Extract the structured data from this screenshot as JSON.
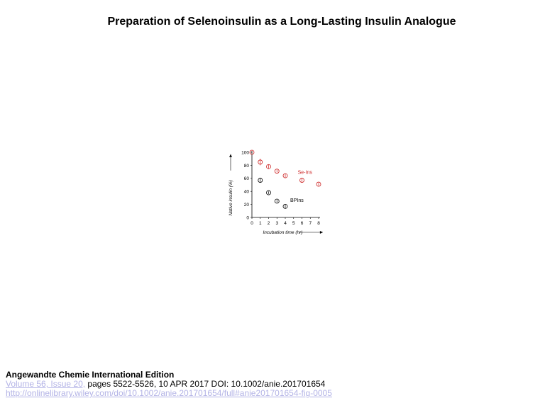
{
  "page": {
    "title": "Preparation of Selenoinsulin as a Long‐Lasting Insulin Analogue"
  },
  "chart_data": {
    "type": "scatter",
    "xlabel": "Incubation time (hr)",
    "ylabel": "Native insulin (%)",
    "xlim": [
      0,
      8
    ],
    "ylim": [
      0,
      100
    ],
    "x_ticks": [
      "0",
      "1",
      "2",
      "3",
      "4",
      "5",
      "6",
      "7",
      "8"
    ],
    "y_ticks": [
      "0",
      "20",
      "40",
      "60",
      "80",
      "100"
    ],
    "grid": false,
    "series": [
      {
        "name": "Se-Ins",
        "color": "#cc2222",
        "marker": "open-circle-errorbar",
        "x": [
          0,
          1,
          2,
          3,
          4,
          6,
          8
        ],
        "y": [
          100,
          85,
          78,
          71,
          64,
          57,
          51
        ],
        "error": [
          0,
          5,
          3,
          2,
          3,
          3,
          2
        ]
      },
      {
        "name": "BPIns",
        "color": "#000000",
        "marker": "open-circle-errorbar",
        "x": [
          1,
          2,
          3,
          4
        ],
        "y": [
          57,
          38,
          25,
          17
        ],
        "error": [
          3,
          2,
          2,
          3
        ]
      }
    ]
  },
  "footer": {
    "journal": "Angewandte Chemie International Edition",
    "volume_link": "Volume 56, Issue 20,",
    "citation": " pages 5522-5526, 10 APR 2017 DOI: 10.1002/anie.201701654",
    "url": "http://onlinelibrary.wiley.com/doi/10.1002/anie.201701654/full#anie201701654-fig-0005"
  }
}
